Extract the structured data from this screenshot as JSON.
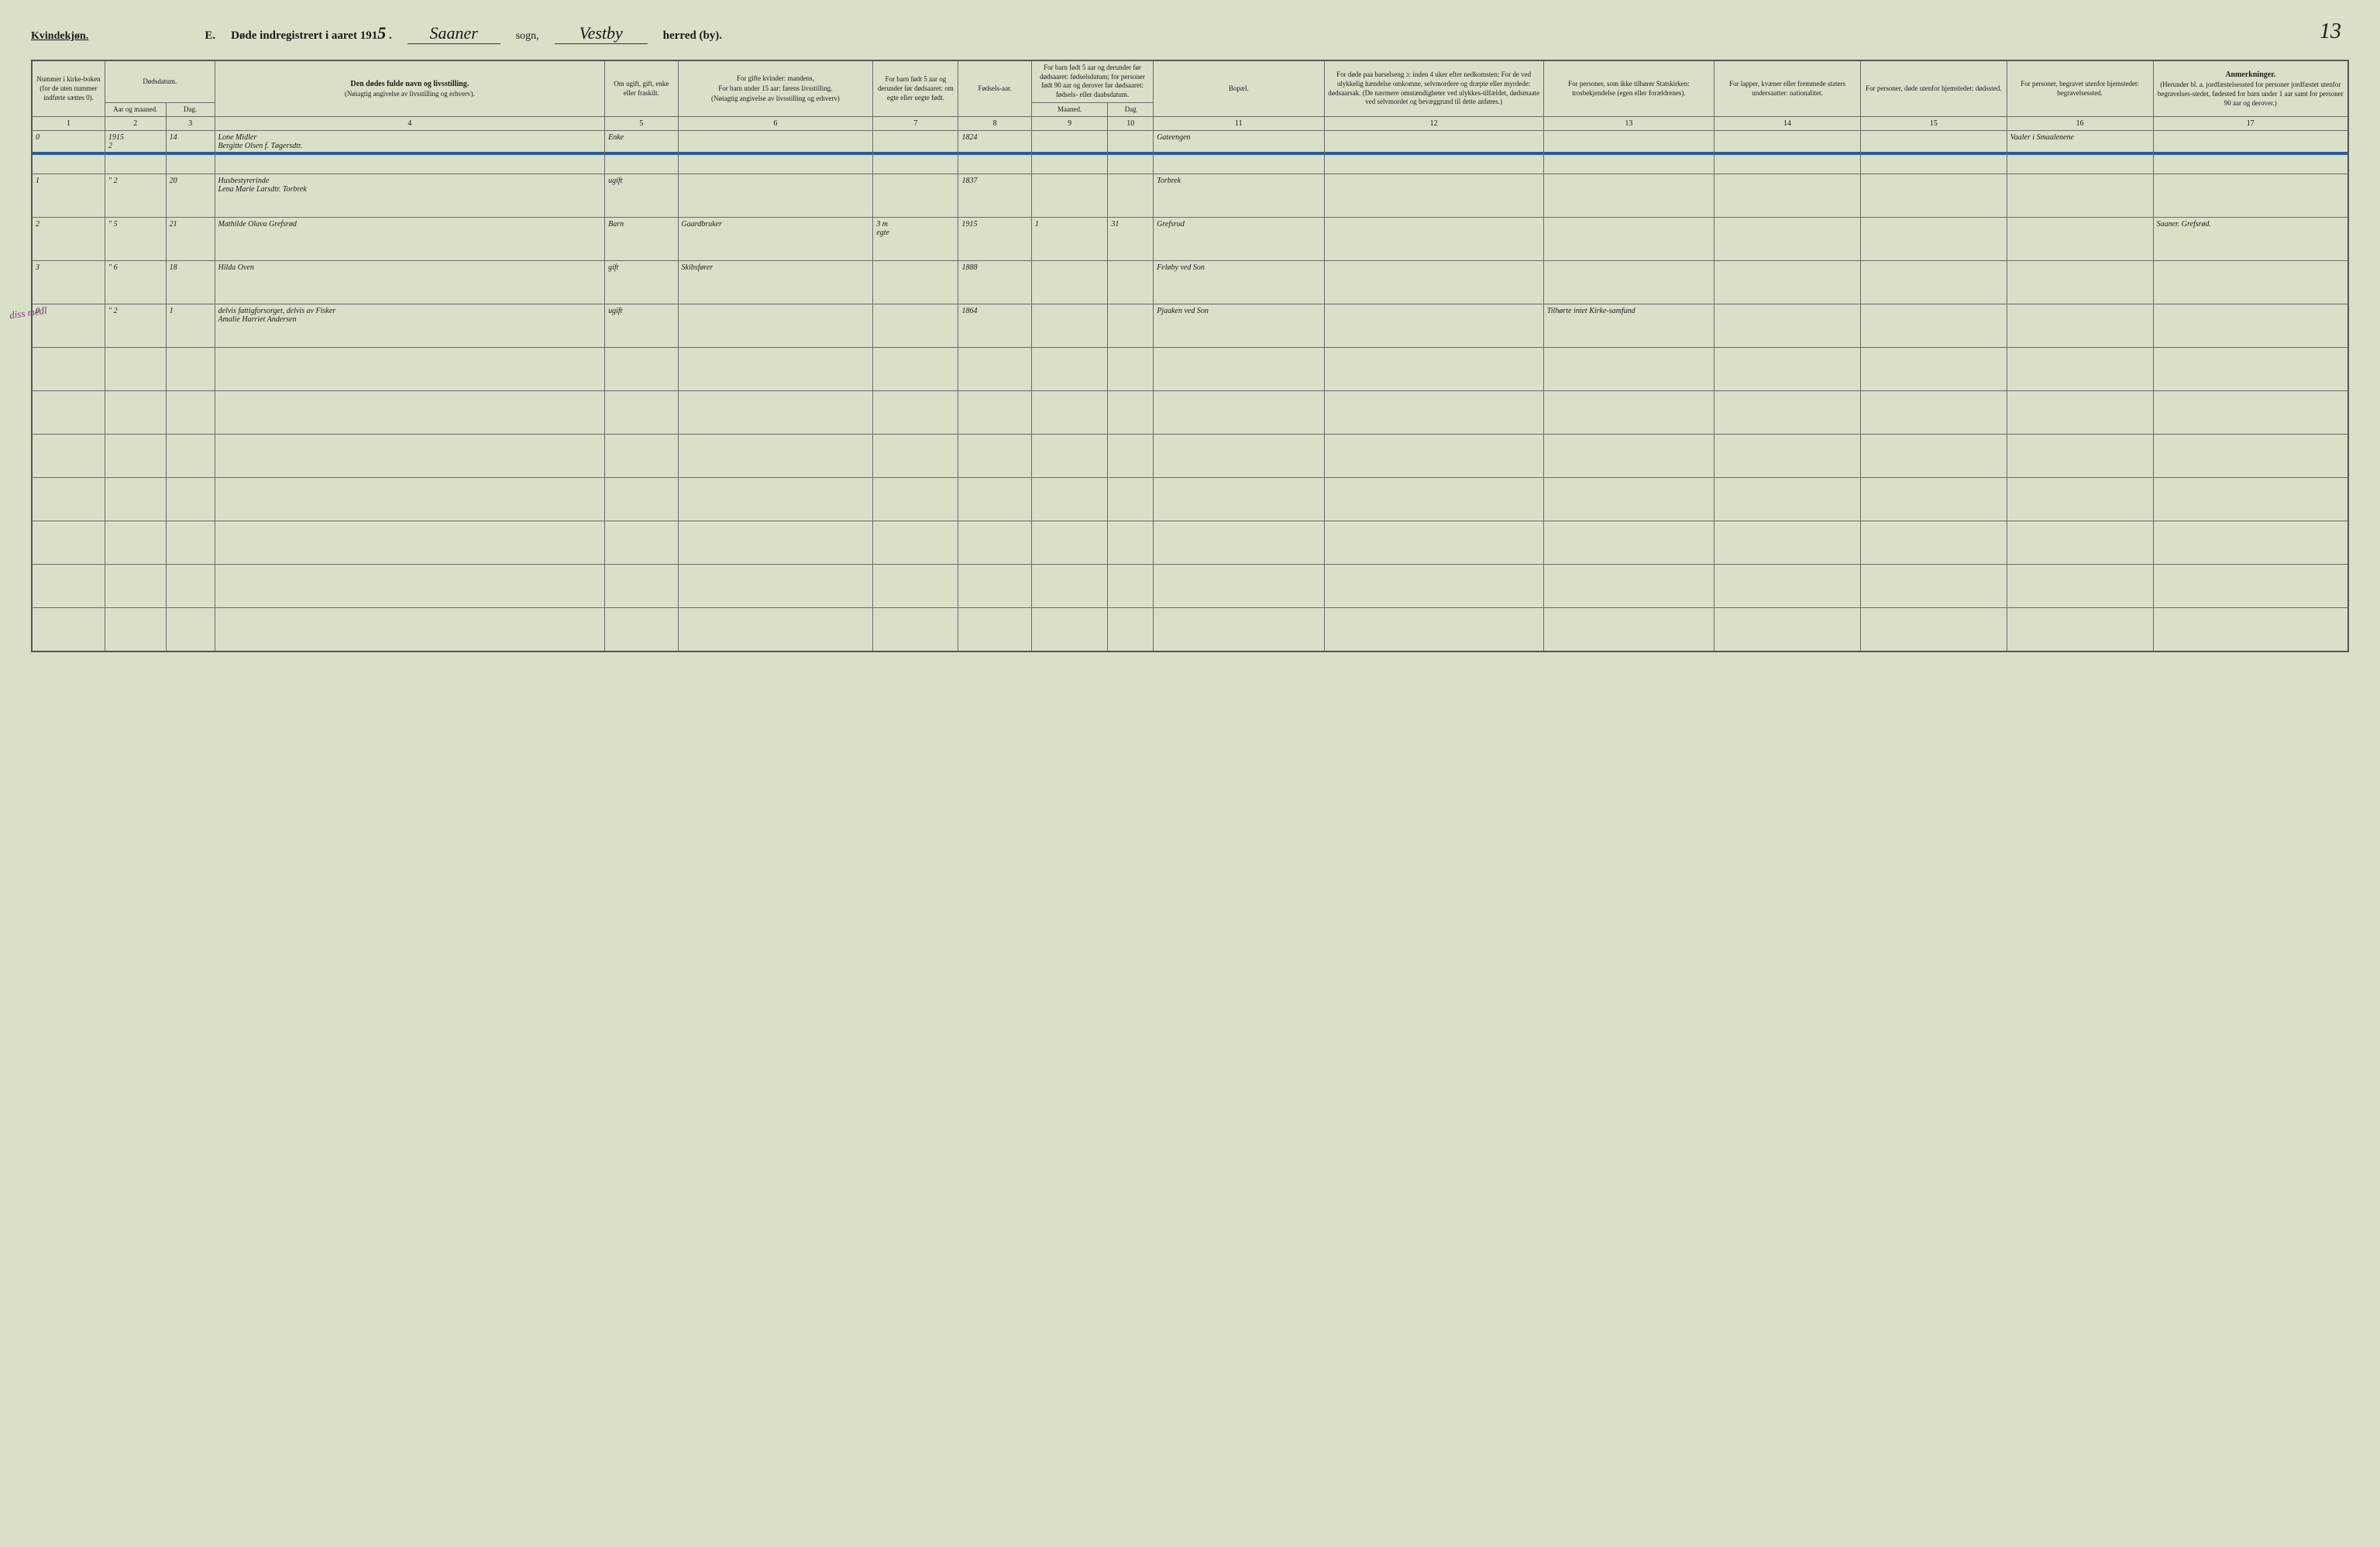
{
  "header": {
    "gender_label": "Kvindekjøn.",
    "section_letter": "E.",
    "title_prefix": "Døde indregistrert i aaret 191",
    "year_suffix": "5",
    "sogn_value": "Saaner",
    "sogn_label": "sogn,",
    "herred_value": "Vestby",
    "herred_label": "herred (by).",
    "page_number": "13"
  },
  "columns": {
    "c1": {
      "label": "Nummer i kirke-boken (for de uten nummer indførte sættes 0)."
    },
    "c2_group": "Dødsdatum.",
    "c2": {
      "label": "Aar og maaned."
    },
    "c3": {
      "label": "Dag."
    },
    "c4": {
      "label_bold": "Den dødes fulde navn og livsstilling.",
      "label_sub": "(Nøiagtig angivelse av livsstilling og erhverv)."
    },
    "c5": {
      "label": "Om ugift, gift, enke eller fraskilt."
    },
    "c6": {
      "label_top": "For gifte kvinder: mandens,",
      "label_mid": "For barn under 15 aar: farens livsstilling.",
      "label_sub": "(Nøiagtig angivelse av livsstilling og erhverv)"
    },
    "c7": {
      "label": "For barn født 5 aar og derunder før dødsaaret: om egte eller uegte født."
    },
    "c8": {
      "label": "Fødsels-aar."
    },
    "c9_group": "For barn født 5 aar og derunder før dødsaaret: fødselsdatum; for personer født 90 aar og derover før dødsaaret: fødsels- eller daabsdatum.",
    "c9": {
      "label": "Maaned."
    },
    "c10": {
      "label": "Dag"
    },
    "c11": {
      "label": "Bopæl."
    },
    "c12": {
      "label": "For døde paa barselseng ɔ: inden 4 uker efter nedkomsten: For de ved ulykkelig hændelse omkomne, selvmordere og dræpte eller myrdede: dødsaarsak. (De nærmere omstændigheter ved ulykkes-tilfældet, dødsmaate ved selvmordet og bevæggrund til dette anføres.)"
    },
    "c13": {
      "label": "For personer, som ikke tilhører Statskirken: trosbekjendelse (egen eller forældrenes)."
    },
    "c14": {
      "label": "For lapper, kvæner eller fremmede staters undersaatter: nationalitet."
    },
    "c15": {
      "label": "For personer, døde utenfor hjemstedet: dødssted."
    },
    "c16": {
      "label": "For personer, begravet utenfor hjemstedet: begravelsessted."
    },
    "c17": {
      "label_bold": "Anmerkninger.",
      "label_sub": "(Herunder bl. a. jordfæstelsessted for personer jordfæstet utenfor begravelses-stedet, fødested for barn under 1 aar samt for personer 90 aar og derover.)"
    }
  },
  "colnums": [
    "1",
    "2",
    "3",
    "4",
    "5",
    "6",
    "7",
    "8",
    "9",
    "10",
    "11",
    "12",
    "13",
    "14",
    "15",
    "16",
    "17"
  ],
  "rows": [
    {
      "num": "0",
      "year_note": "1915",
      "ym": "2",
      "day": "14",
      "name_top": "Lone Midler",
      "name": "Bergitte Olsen f. Tøgersdtr.",
      "status": "Enke",
      "spouse": "",
      "legit": "",
      "birthyear": "1824",
      "bm": "",
      "bd": "",
      "residence": "Gateengen",
      "cause": "",
      "faith": "",
      "nat": "",
      "deathplace": "",
      "burial": "Vaaler i Smaalenene",
      "notes": "",
      "struck": true
    },
    {
      "num": "1",
      "ym": "\" 2",
      "day": "20",
      "name_top": "Husbestyrerinde",
      "name": "Lena Marie Larsdtr. Torbrek",
      "status": "ugift",
      "spouse": "",
      "legit": "",
      "birthyear": "1837",
      "bm": "",
      "bd": "",
      "residence": "Torbrek",
      "cause": "",
      "faith": "",
      "nat": "",
      "deathplace": "",
      "burial": "",
      "notes": ""
    },
    {
      "num": "2",
      "ym": "\" 5",
      "day": "21",
      "name": "Mathilde Olava Grefsrød",
      "name_top": "",
      "status": "Barn",
      "spouse": "Gaardbruker",
      "legit": "egte",
      "birthyear": "1915",
      "legit_note": "3 m",
      "bm": "1",
      "bd": "31",
      "residence": "Grefsrud",
      "cause": "",
      "faith": "",
      "nat": "",
      "deathplace": "",
      "burial": "",
      "notes": "Saaner. Grefsrød."
    },
    {
      "num": "3",
      "ym": "\" 6",
      "day": "18",
      "name": "Hilda Oven",
      "name_top": "",
      "status": "gift",
      "spouse": "Skibsfører",
      "legit": "",
      "birthyear": "1888",
      "bm": "",
      "bd": "",
      "residence": "Feløby ved Son",
      "cause": "",
      "faith": "",
      "nat": "",
      "deathplace": "",
      "burial": "",
      "notes": ""
    },
    {
      "num": "0",
      "ym": "\" 2",
      "day": "1",
      "name_top": "delvis fattigforsorget, delvis av Fisker",
      "name": "Amalie Harriet Andersen",
      "status": "ugift",
      "spouse": "",
      "legit": "",
      "birthyear": "1864",
      "bm": "",
      "bd": "",
      "residence": "Pjaaken ved Son",
      "cause": "",
      "faith": "Tilhørte intet Kirke-samfund",
      "nat": "",
      "deathplace": "",
      "burial": "",
      "notes": "",
      "margin": "diss medl"
    }
  ],
  "empty_rows": 7
}
